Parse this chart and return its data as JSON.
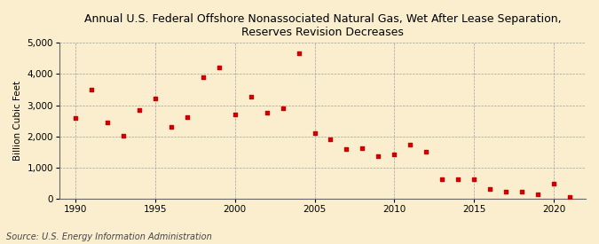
{
  "title": "Annual U.S. Federal Offshore Nonassociated Natural Gas, Wet After Lease Separation,\nReserves Revision Decreases",
  "ylabel": "Billion Cubic Feet",
  "source": "Source: U.S. Energy Information Administration",
  "background_color": "#faeecf",
  "point_color": "#cc0000",
  "years": [
    1990,
    1991,
    1992,
    1993,
    1994,
    1995,
    1996,
    1997,
    1998,
    1999,
    2000,
    2001,
    2002,
    2003,
    2004,
    2005,
    2006,
    2007,
    2008,
    2009,
    2010,
    2011,
    2012,
    2013,
    2014,
    2015,
    2016,
    2017,
    2018,
    2019,
    2020,
    2021
  ],
  "values": [
    2580,
    3500,
    2450,
    2020,
    2850,
    3220,
    2310,
    2620,
    3900,
    4220,
    2700,
    3280,
    2760,
    2890,
    4680,
    2090,
    1910,
    1600,
    1630,
    1360,
    1430,
    1720,
    1510,
    620,
    630,
    620,
    320,
    230,
    220,
    140,
    480,
    60
  ],
  "xlim": [
    1989.0,
    2022.0
  ],
  "ylim": [
    0,
    5000
  ],
  "yticks": [
    0,
    1000,
    2000,
    3000,
    4000,
    5000
  ],
  "xticks": [
    1990,
    1995,
    2000,
    2005,
    2010,
    2015,
    2020
  ],
  "title_fontsize": 9,
  "label_fontsize": 7.5,
  "tick_fontsize": 7.5,
  "source_fontsize": 7
}
